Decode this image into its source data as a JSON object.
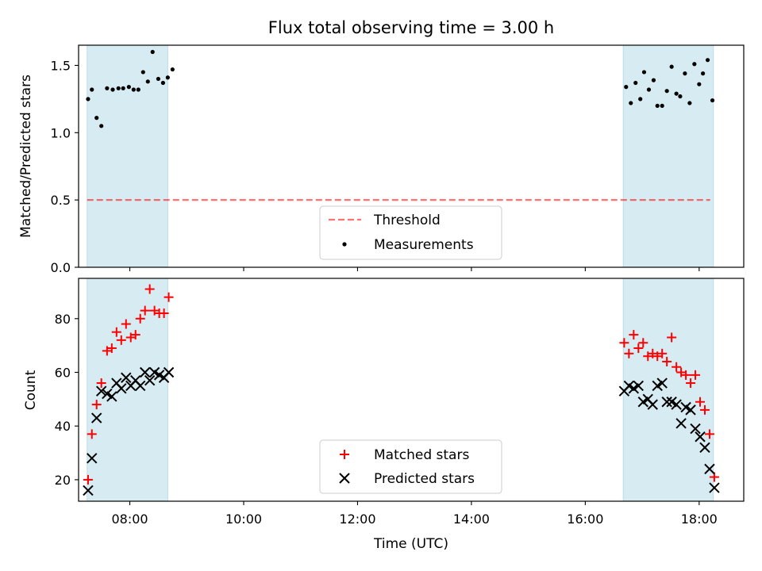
{
  "title": "Flux total observing time = 3.00 h",
  "colors": {
    "band": "#add8e6",
    "threshold": "#ff0000",
    "measurement": "#000000",
    "matched": "#ff0000",
    "predicted": "#000000"
  },
  "chart_data": [
    {
      "type": "scatter",
      "ylabel": "Matched/Predicted stars",
      "xlabel": "",
      "xlim": [
        "07:06",
        "18:47"
      ],
      "ylim": [
        0,
        1.65
      ],
      "x_ticks": [
        "08:00",
        "10:00",
        "12:00",
        "14:00",
        "16:00",
        "18:00"
      ],
      "y_ticks": [
        "0.0",
        "0.5",
        "1.0",
        "1.5"
      ],
      "y_tick_values": [
        0,
        0.5,
        1.0,
        1.5
      ],
      "grid": false,
      "legend_position": "bottom-center",
      "bands": [
        [
          "07:15",
          "08:40"
        ],
        [
          "16:40",
          "18:15"
        ]
      ],
      "threshold": {
        "name": "Threshold",
        "value": 0.5,
        "style": "dashed"
      },
      "series": [
        {
          "name": "Measurements",
          "marker": "dot",
          "points": [
            [
              "07:16",
              1.25
            ],
            [
              "07:20",
              1.32
            ],
            [
              "07:25",
              1.11
            ],
            [
              "07:30",
              1.05
            ],
            [
              "07:36",
              1.33
            ],
            [
              "07:42",
              1.32
            ],
            [
              "07:48",
              1.33
            ],
            [
              "07:53",
              1.33
            ],
            [
              "07:59",
              1.34
            ],
            [
              "08:04",
              1.32
            ],
            [
              "08:09",
              1.32
            ],
            [
              "08:14",
              1.45
            ],
            [
              "08:19",
              1.38
            ],
            [
              "08:24",
              1.6
            ],
            [
              "08:30",
              1.4
            ],
            [
              "08:35",
              1.37
            ],
            [
              "08:40",
              1.41
            ],
            [
              "08:45",
              1.47
            ],
            [
              "16:43",
              1.34
            ],
            [
              "16:48",
              1.22
            ],
            [
              "16:53",
              1.37
            ],
            [
              "16:58",
              1.25
            ],
            [
              "17:02",
              1.45
            ],
            [
              "17:07",
              1.32
            ],
            [
              "17:12",
              1.39
            ],
            [
              "17:16",
              1.2
            ],
            [
              "17:21",
              1.2
            ],
            [
              "17:26",
              1.31
            ],
            [
              "17:31",
              1.49
            ],
            [
              "17:36",
              1.29
            ],
            [
              "17:40",
              1.27
            ],
            [
              "17:45",
              1.44
            ],
            [
              "17:50",
              1.22
            ],
            [
              "17:55",
              1.51
            ],
            [
              "18:00",
              1.36
            ],
            [
              "18:04",
              1.44
            ],
            [
              "18:09",
              1.54
            ],
            [
              "18:14",
              1.24
            ]
          ]
        }
      ]
    },
    {
      "type": "scatter",
      "ylabel": "Count",
      "xlabel": "Time (UTC)",
      "xlim": [
        "07:06",
        "18:47"
      ],
      "ylim": [
        12,
        95
      ],
      "x_ticks": [
        "08:00",
        "10:00",
        "12:00",
        "14:00",
        "16:00",
        "18:00"
      ],
      "y_ticks": [
        "20",
        "40",
        "60",
        "80"
      ],
      "y_tick_values": [
        20,
        40,
        60,
        80
      ],
      "grid": false,
      "legend_position": "bottom-center",
      "bands": [
        [
          "07:15",
          "08:40"
        ],
        [
          "16:40",
          "18:15"
        ]
      ],
      "series": [
        {
          "name": "Matched stars",
          "marker": "plus",
          "points": [
            [
              "07:16",
              20
            ],
            [
              "07:20",
              37
            ],
            [
              "07:25",
              48
            ],
            [
              "07:30",
              56
            ],
            [
              "07:36",
              68
            ],
            [
              "07:41",
              69
            ],
            [
              "07:46",
              75
            ],
            [
              "07:51",
              72
            ],
            [
              "07:56",
              78
            ],
            [
              "08:01",
              73
            ],
            [
              "08:06",
              74
            ],
            [
              "08:11",
              80
            ],
            [
              "08:16",
              83
            ],
            [
              "08:21",
              91
            ],
            [
              "08:26",
              83
            ],
            [
              "08:31",
              82
            ],
            [
              "08:36",
              82
            ],
            [
              "08:41",
              88
            ],
            [
              "16:41",
              71
            ],
            [
              "16:46",
              67
            ],
            [
              "16:51",
              74
            ],
            [
              "16:56",
              69
            ],
            [
              "17:01",
              71
            ],
            [
              "17:06",
              66
            ],
            [
              "17:11",
              67
            ],
            [
              "17:16",
              66
            ],
            [
              "17:21",
              67
            ],
            [
              "17:26",
              64
            ],
            [
              "17:31",
              73
            ],
            [
              "17:36",
              62
            ],
            [
              "17:41",
              60
            ],
            [
              "17:46",
              59
            ],
            [
              "17:51",
              56
            ],
            [
              "17:56",
              59
            ],
            [
              "18:01",
              49
            ],
            [
              "18:06",
              46
            ],
            [
              "18:11",
              37
            ],
            [
              "18:16",
              21
            ]
          ]
        },
        {
          "name": "Predicted stars",
          "marker": "x",
          "points": [
            [
              "07:16",
              16
            ],
            [
              "07:20",
              28
            ],
            [
              "07:25",
              43
            ],
            [
              "07:30",
              53
            ],
            [
              "07:36",
              52
            ],
            [
              "07:41",
              51
            ],
            [
              "07:46",
              56
            ],
            [
              "07:51",
              54
            ],
            [
              "07:56",
              58
            ],
            [
              "08:01",
              55
            ],
            [
              "08:06",
              57
            ],
            [
              "08:11",
              55
            ],
            [
              "08:16",
              60
            ],
            [
              "08:21",
              57
            ],
            [
              "08:26",
              60
            ],
            [
              "08:31",
              59
            ],
            [
              "08:36",
              58
            ],
            [
              "08:41",
              60
            ],
            [
              "16:41",
              53
            ],
            [
              "16:46",
              55
            ],
            [
              "16:51",
              54
            ],
            [
              "16:56",
              55
            ],
            [
              "17:01",
              49
            ],
            [
              "17:06",
              50
            ],
            [
              "17:11",
              48
            ],
            [
              "17:16",
              55
            ],
            [
              "17:21",
              56
            ],
            [
              "17:26",
              49
            ],
            [
              "17:31",
              49
            ],
            [
              "17:36",
              48
            ],
            [
              "17:41",
              41
            ],
            [
              "17:46",
              47
            ],
            [
              "17:51",
              46
            ],
            [
              "17:56",
              39
            ],
            [
              "18:01",
              36
            ],
            [
              "18:06",
              32
            ],
            [
              "18:11",
              24
            ],
            [
              "18:16",
              17
            ]
          ]
        }
      ]
    }
  ]
}
